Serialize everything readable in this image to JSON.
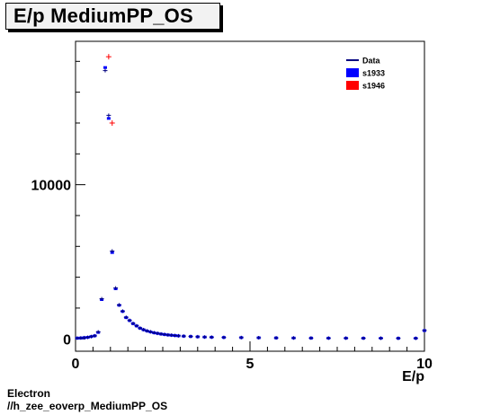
{
  "header": {
    "title": "E/p MediumPP_OS"
  },
  "footer": {
    "line1": "Electron",
    "line2": "//h_zee_eoverp_MediumPP_OS"
  },
  "colors": {
    "data": "#00007f",
    "s1933": "#0000ff",
    "s1946": "#ff0000",
    "axis": "#000000"
  },
  "chart_data": {
    "type": "scatter",
    "title": "E/p MediumPP_OS",
    "xlabel": "E/p",
    "ylabel": "",
    "xlim": [
      0,
      10
    ],
    "ylim": [
      -800,
      19300
    ],
    "x_ticks": [
      0,
      5,
      10
    ],
    "y_ticks": [
      0,
      10000
    ],
    "grid": false,
    "legend_position": "top-right",
    "legend": [
      {
        "name": "Data",
        "marker": "line",
        "color": "#00007f"
      },
      {
        "name": "s1933",
        "marker": "box",
        "color": "#0000ff"
      },
      {
        "name": "s1946",
        "marker": "box",
        "color": "#ff0000"
      }
    ],
    "series": [
      {
        "name": "Data",
        "x": [
          0.05,
          0.15,
          0.25,
          0.35,
          0.45,
          0.55,
          0.65,
          0.75,
          0.85,
          0.95,
          1.05,
          1.15,
          1.25,
          1.35,
          1.45,
          1.55,
          1.65,
          1.75,
          1.85,
          1.95,
          2.05,
          2.15,
          2.25,
          2.35,
          2.45,
          2.55,
          2.65,
          2.75,
          2.85,
          2.95,
          3.1,
          3.3,
          3.5,
          3.7,
          3.9,
          4.25,
          4.75,
          5.25,
          5.75,
          6.25,
          6.75,
          7.25,
          7.75,
          8.25,
          8.75,
          9.25,
          9.75,
          10.0
        ],
        "y": [
          50,
          60,
          80,
          100,
          150,
          200,
          450,
          2600,
          17400,
          14500,
          5700,
          3300,
          2200,
          1800,
          1400,
          1200,
          1000,
          850,
          700,
          600,
          520,
          460,
          400,
          360,
          320,
          290,
          260,
          240,
          220,
          200,
          180,
          160,
          140,
          120,
          110,
          95,
          85,
          75,
          65,
          60,
          55,
          50,
          50,
          45,
          45,
          40,
          40,
          550
        ]
      },
      {
        "name": "s1933",
        "x": [
          0.05,
          0.15,
          0.25,
          0.35,
          0.45,
          0.55,
          0.65,
          0.75,
          0.85,
          0.95,
          1.05,
          1.15,
          1.25,
          1.35,
          1.45,
          1.55,
          1.65,
          1.75,
          1.85,
          1.95,
          2.05,
          2.15,
          2.25,
          2.35,
          2.45,
          2.55,
          2.65,
          2.75,
          2.85,
          2.95,
          3.1,
          3.3,
          3.5,
          3.7,
          3.9,
          4.25,
          4.75,
          5.25,
          5.75,
          6.25,
          6.75,
          7.25,
          7.75,
          8.25,
          8.75,
          9.25,
          9.75,
          10.0
        ],
        "y": [
          50,
          60,
          80,
          100,
          150,
          200,
          420,
          2550,
          17600,
          14300,
          5600,
          3250,
          2180,
          1780,
          1380,
          1190,
          990,
          840,
          690,
          590,
          510,
          450,
          395,
          355,
          315,
          285,
          255,
          235,
          215,
          195,
          175,
          155,
          135,
          118,
          108,
          93,
          83,
          73,
          63,
          58,
          53,
          48,
          48,
          44,
          44,
          39,
          39,
          540
        ]
      },
      {
        "name": "s1946",
        "x": [
          0.95,
          1.05
        ],
        "y": [
          18300,
          14000
        ]
      }
    ]
  }
}
